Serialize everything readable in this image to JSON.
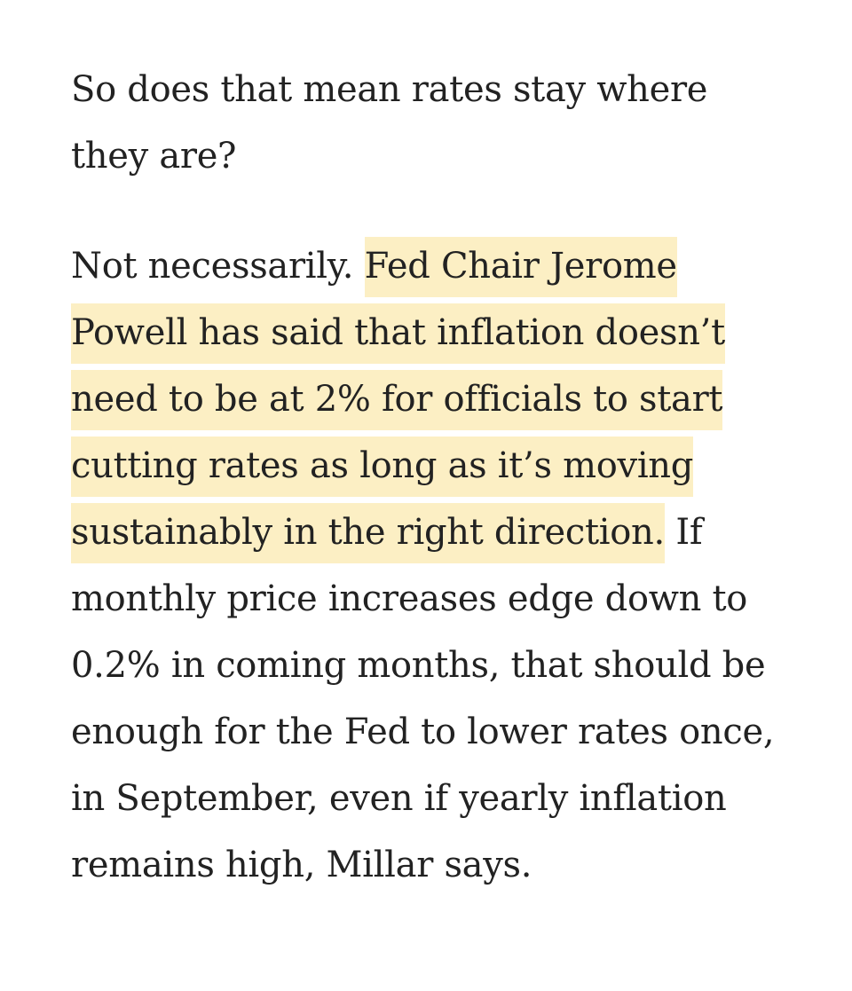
{
  "article": {
    "question": "So does that mean rates stay where they are?",
    "answer": {
      "lead": "Not necessarily. ",
      "highlighted": "Fed Chair Jerome Powell has said that inflation doesn’t need to be at 2% for officials to start cutting rates as long as it’s moving sustainably in the right direction.",
      "rest": " If monthly price increases edge down to 0.2% in coming months, that should be enough for the Fed to lower rates once, in September, even if yearly inflation remains high, Millar says."
    },
    "highlight_color": "#fcefc4",
    "text_color": "#222222"
  }
}
